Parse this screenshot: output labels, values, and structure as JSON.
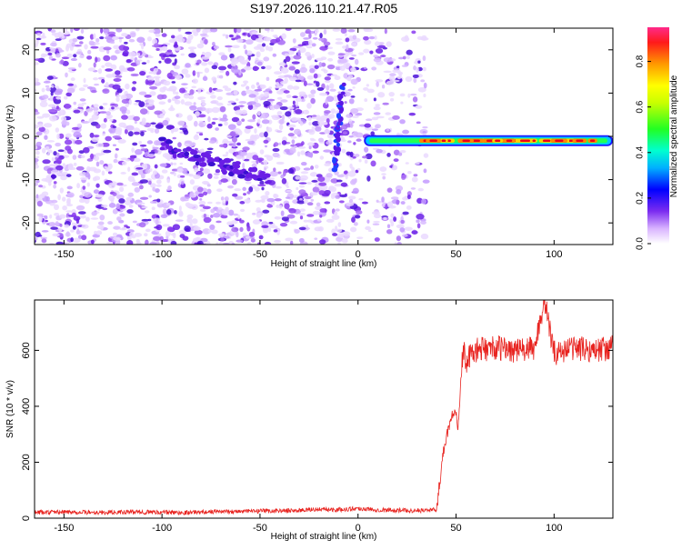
{
  "title": "S197.2026.110.21.47.R05",
  "colors": {
    "signal": "#e8231f",
    "noise": "#8a3cf0",
    "axis": "#000000"
  },
  "chart_data": [
    {
      "type": "heatmap",
      "title": "S197.2026.110.21.47.R05",
      "xlabel": "Height of straight line (km)",
      "ylabel": "Frequency (Hz)",
      "xlim": [
        -165,
        130
      ],
      "ylim": [
        -25,
        25
      ],
      "xticks": [
        -150,
        -100,
        -50,
        0,
        50,
        100
      ],
      "yticks": [
        -20,
        -10,
        0,
        10,
        20
      ],
      "colorbar": {
        "label": "Normalized spectral amplitude",
        "ticks": [
          0.0,
          0.2,
          0.4,
          0.6,
          0.8
        ],
        "range": [
          0,
          0.95
        ]
      },
      "features": [
        {
          "name": "signal-band",
          "x_range": [
            3,
            130
          ],
          "frequency_hz": -1,
          "amplitude_range": [
            0.3,
            0.95
          ]
        },
        {
          "name": "diffuse-noise",
          "x_range": [
            -165,
            35
          ],
          "frequency_range_hz": [
            -25,
            25
          ],
          "amplitude_range": [
            0.0,
            0.25
          ]
        }
      ]
    },
    {
      "type": "line",
      "xlabel": "Height of straight line (km)",
      "ylabel": "SNR (10 * v/v)",
      "xlim": [
        -165,
        130
      ],
      "ylim": [
        0,
        780
      ],
      "xticks": [
        -150,
        -100,
        -50,
        0,
        50,
        100
      ],
      "yticks": [
        0,
        200,
        400,
        600
      ],
      "series": [
        {
          "name": "SNR",
          "x": [
            -165,
            -150,
            -130,
            -110,
            -90,
            -70,
            -50,
            -30,
            -20,
            -10,
            0,
            10,
            20,
            30,
            40,
            42,
            44,
            46,
            48,
            50,
            51,
            52,
            53,
            54,
            55,
            60,
            70,
            80,
            90,
            95,
            100,
            110,
            120,
            130
          ],
          "y": [
            20,
            22,
            20,
            22,
            20,
            24,
            25,
            28,
            32,
            30,
            35,
            30,
            28,
            27,
            30,
            150,
            260,
            320,
            370,
            390,
            330,
            450,
            550,
            600,
            560,
            600,
            610,
            600,
            605,
            780,
            590,
            610,
            600,
            610
          ]
        }
      ]
    }
  ]
}
